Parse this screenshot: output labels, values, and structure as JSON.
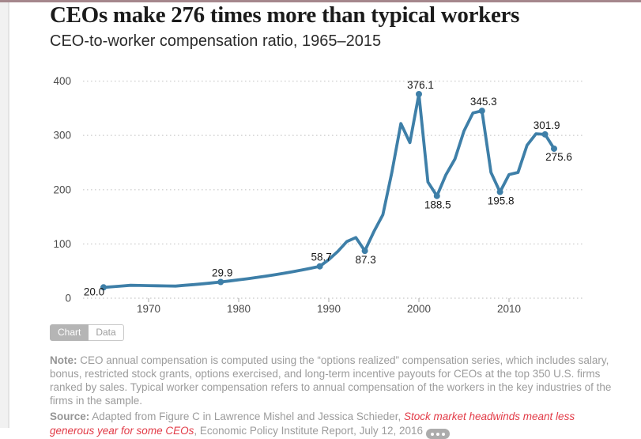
{
  "page": {
    "title": "CEOs make 276 times more than typical workers",
    "subtitle": "CEO-to-worker compensation ratio, 1965–2015"
  },
  "tabs": {
    "chart_label": "Chart",
    "data_label": "Data",
    "active": "Chart"
  },
  "note": {
    "label": "Note:",
    "text": " CEO annual compensation is computed using the “options realized” compensation series, which includes salary, bonus, restricted stock grants, options exercised, and long-term incentive payouts for CEOs at the top 350 U.S. firms ranked by sales. Typical worker compensation refers to annual compensation of the workers in the key industries of the firms in the sample."
  },
  "source": {
    "label": "Source:",
    "pre_link": " Adapted from Figure C in Lawrence Mishel and Jessica Schieder, ",
    "link": "Stock market headwinds meant less generous year for some CEOs",
    "post_link": ", Economic Policy Institute Report, July 12, 2016",
    "more_button": "more-options"
  },
  "colors": {
    "line": "#3e7fa8",
    "grid": "#d2d2d2",
    "axis_text": "#4a4a4a",
    "data_label_text": "#1a1a1a",
    "accent_bar": "#a5878c",
    "link_red": "#e23b47",
    "tab_active_bg": "#b5b5b5",
    "note_text": "#9c9c9c"
  },
  "chart_data": {
    "type": "line",
    "title": "CEO-to-worker compensation ratio, 1965–2015",
    "xlabel": "",
    "ylabel": "",
    "xlim": [
      1965,
      2015
    ],
    "ylim": [
      0,
      400
    ],
    "x_ticks": [
      1970,
      1980,
      1990,
      2000,
      2010
    ],
    "y_ticks": [
      0,
      100,
      200,
      300,
      400
    ],
    "grid": "horizontal-dotted",
    "legend": "none",
    "x": [
      1965,
      1966,
      1967,
      1968,
      1969,
      1970,
      1971,
      1972,
      1973,
      1974,
      1975,
      1976,
      1977,
      1978,
      1979,
      1980,
      1981,
      1982,
      1983,
      1984,
      1985,
      1986,
      1987,
      1988,
      1989,
      1990,
      1991,
      1992,
      1993,
      1994,
      1995,
      1996,
      1997,
      1998,
      1999,
      2000,
      2001,
      2002,
      2003,
      2004,
      2005,
      2006,
      2007,
      2008,
      2009,
      2010,
      2011,
      2012,
      2013,
      2014,
      2015
    ],
    "values": [
      20.0,
      21.2,
      22.4,
      23.7,
      23.4,
      23.2,
      22.9,
      22.6,
      22.3,
      23.7,
      25.1,
      26.6,
      28.2,
      29.9,
      31.8,
      33.8,
      35.9,
      38.2,
      40.6,
      43.2,
      45.9,
      48.8,
      51.9,
      55.2,
      58.7,
      71.2,
      86.2,
      104.4,
      111.8,
      87.3,
      122.6,
      153.8,
      232.0,
      321.8,
      286.7,
      376.1,
      214.2,
      188.5,
      227.5,
      256.6,
      308.0,
      341.4,
      345.3,
      231.7,
      195.8,
      227.9,
      231.8,
      281.8,
      303.1,
      301.9,
      275.6
    ],
    "labeled_points": [
      {
        "year": 1965,
        "label": "20.0",
        "position": "below-left"
      },
      {
        "year": 1978,
        "label": "29.9",
        "position": "above"
      },
      {
        "year": 1989,
        "label": "58.7",
        "position": "above"
      },
      {
        "year": 1994,
        "label": "87.3",
        "position": "below"
      },
      {
        "year": 2000,
        "label": "376.1",
        "position": "above"
      },
      {
        "year": 2002,
        "label": "188.5",
        "position": "below"
      },
      {
        "year": 2007,
        "label": "345.3",
        "position": "above"
      },
      {
        "year": 2009,
        "label": "195.8",
        "position": "below"
      },
      {
        "year": 2014,
        "label": "301.9",
        "position": "above"
      },
      {
        "year": 2015,
        "label": "275.6",
        "position": "below-right"
      }
    ]
  }
}
